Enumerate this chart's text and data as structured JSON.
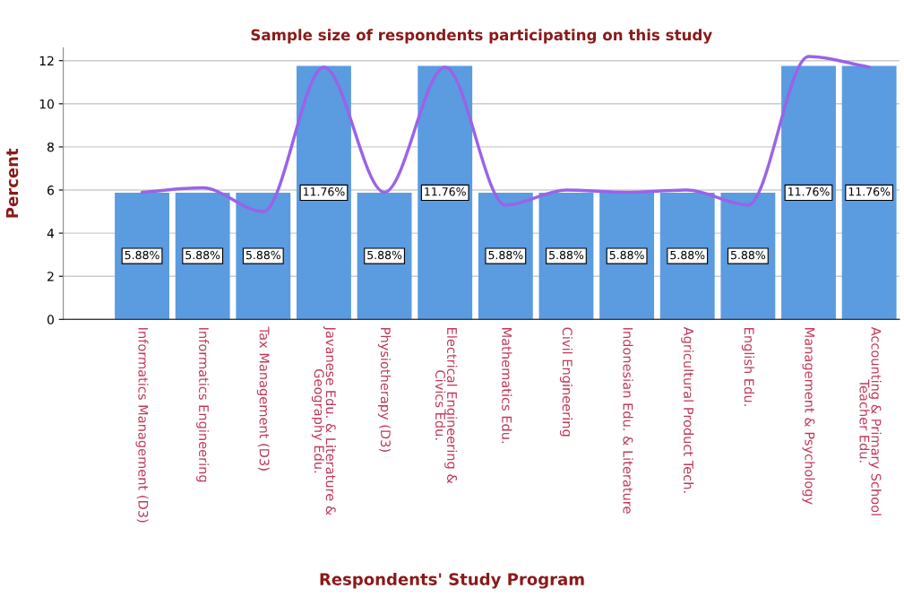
{
  "chart_data": {
    "type": "bar",
    "title": "Sample size of respondents participating on this study",
    "xlabel": "Respondents' Study Program",
    "ylabel": "Percent",
    "categories": [
      "Informatics Management (D3)",
      "Informatics Engineering",
      "Tax Management (D3)",
      "Javanese Edu. & Literature &\nGeography Edu.",
      "Physiotherapy (D3)",
      "Electrical Engineering &\nCivics Edu.",
      "Mathematics Edu.",
      "Civil Engineering",
      "Indonesian Edu. & Literature",
      "Agricultural Product Tech.",
      "English Edu.",
      "Management & Psychology",
      "Accounting & Primary School\nTeacher Edu."
    ],
    "series": [
      {
        "color": "#5b9be0",
        "values": [
          5.88,
          5.88,
          5.88,
          11.76,
          5.88,
          11.76,
          5.88,
          5.88,
          5.88,
          5.88,
          5.88,
          11.76,
          11.76
        ],
        "value_labels": [
          "5.88%",
          "5.88%",
          "5.88%",
          "11.76%",
          "5.88%",
          "11.76%",
          "5.88%",
          "5.88%",
          "5.88%",
          "5.88%",
          "5.88%",
          "11.76%",
          "11.76%"
        ]
      },
      {
        "type": "line",
        "color": "#9a63e8",
        "values": [
          5.9,
          6.1,
          5.0,
          11.7,
          5.9,
          11.7,
          5.3,
          6.0,
          5.9,
          6.0,
          5.3,
          12.2,
          11.7
        ]
      }
    ],
    "ylim": [
      0,
      12.6
    ],
    "yticks": [
      0,
      2,
      4,
      6,
      8,
      10,
      12
    ],
    "grid": "y",
    "legend": false,
    "marker": "none",
    "line_style": "solid"
  }
}
